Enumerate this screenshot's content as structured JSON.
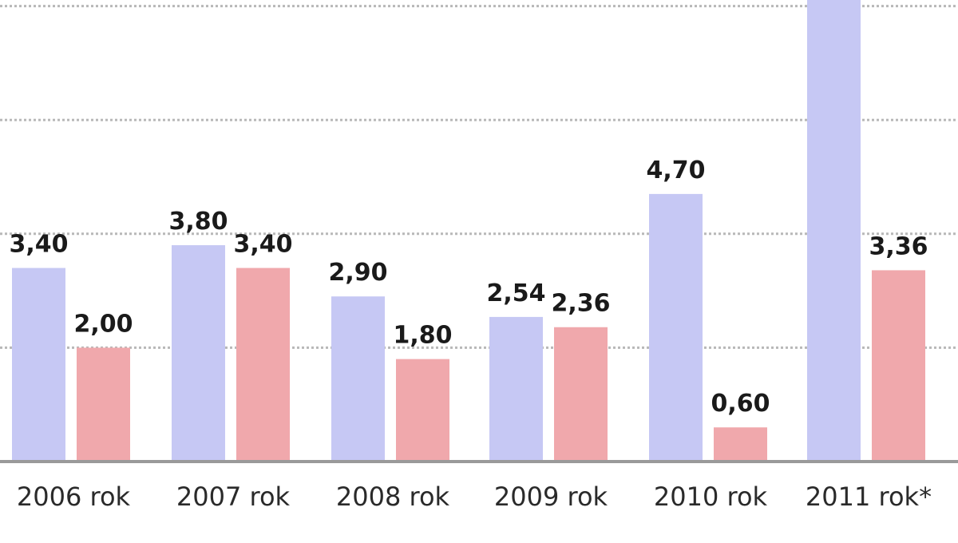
{
  "chart_data": {
    "type": "bar",
    "categories": [
      "2006 rok",
      "2007 rok",
      "2008 rok",
      "2009 rok",
      "2010 rok",
      "2011 rok*"
    ],
    "series": [
      {
        "values": [
          3.4,
          3.8,
          2.9,
          2.54,
          4.7,
          8.3
        ]
      },
      {
        "values": [
          2.0,
          3.4,
          1.8,
          2.36,
          0.6,
          3.36
        ]
      }
    ],
    "value_labels": [
      [
        "3,40",
        "3,80",
        "2,90",
        "2,54",
        "4,70",
        ""
      ],
      [
        "2,00",
        "3,40",
        "1,80",
        "2,36",
        "0,60",
        "3,36"
      ]
    ],
    "ylim": [
      0,
      8
    ],
    "gridlines": [
      2,
      4,
      6,
      8
    ],
    "grid": true,
    "colors": [
      "#c6c8f4",
      "#f0a8ac"
    ],
    "title": "",
    "xlabel": "",
    "ylabel": ""
  }
}
